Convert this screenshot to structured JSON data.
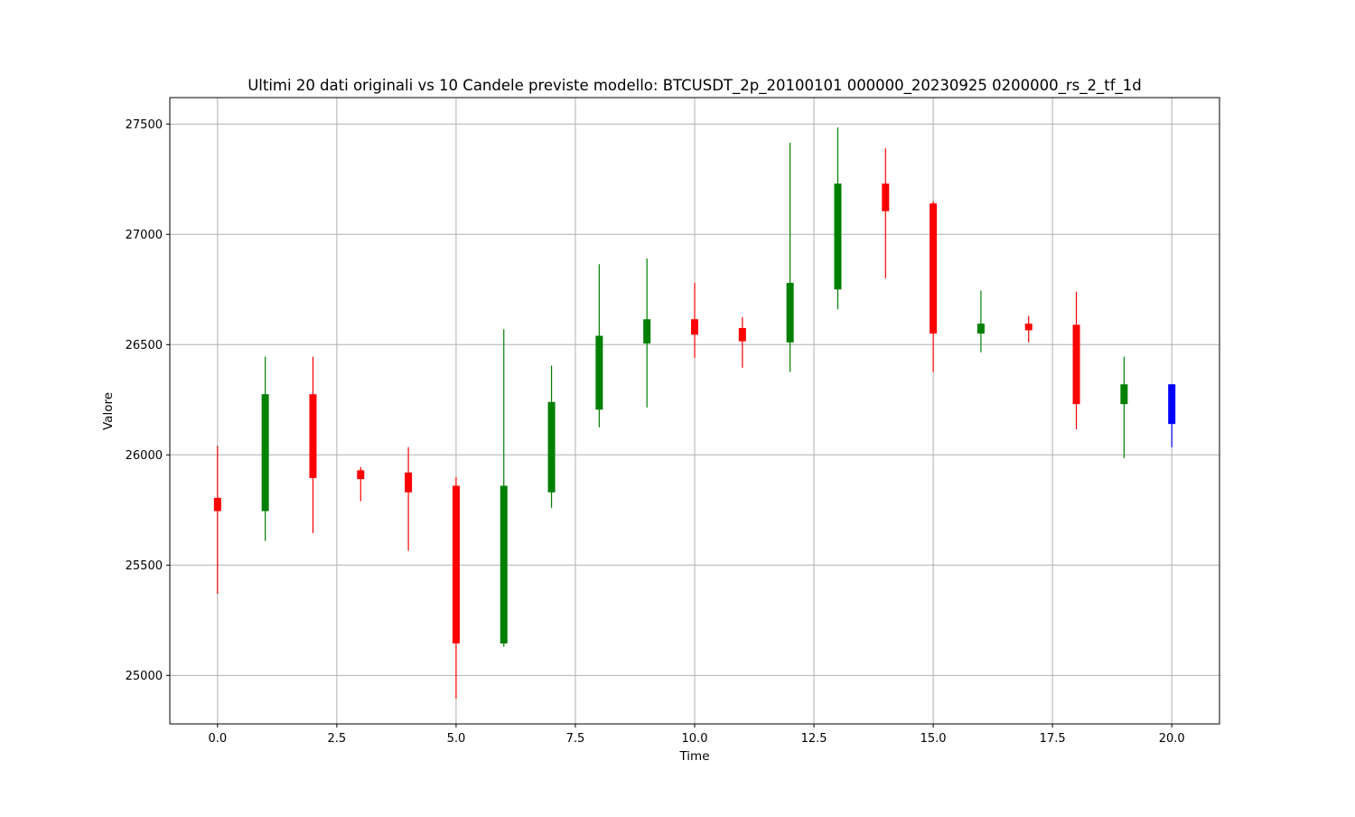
{
  "chart_data": {
    "type": "candlestick",
    "title": "Ultimi 20 dati originali vs 10 Candele previste modello: BTCUSDT_2p_20100101 000000_20230925 0200000_rs_2_tf_1d",
    "xlabel": "Time",
    "ylabel": "Valore",
    "xlim": [
      -1.0,
      21.0
    ],
    "ylim": [
      24780,
      27620
    ],
    "xticks": [
      0.0,
      2.5,
      5.0,
      7.5,
      10.0,
      12.5,
      15.0,
      17.5,
      20.0
    ],
    "xtick_labels": [
      "0.0",
      "2.5",
      "5.0",
      "7.5",
      "10.0",
      "12.5",
      "15.0",
      "17.5",
      "20.0"
    ],
    "yticks": [
      25000,
      25500,
      26000,
      26500,
      27000,
      27500
    ],
    "ytick_labels": [
      "25000",
      "25500",
      "26000",
      "26500",
      "27000",
      "27500"
    ],
    "grid": true,
    "colors": {
      "up": "#008000",
      "down": "#ff0000",
      "forecast": "#0000ff",
      "grid": "#b0b0b0"
    },
    "candles": [
      {
        "x": 0,
        "open": 25805,
        "high": 26040,
        "low": 25370,
        "close": 25745,
        "color": "red"
      },
      {
        "x": 1,
        "open": 25745,
        "high": 26445,
        "low": 25610,
        "close": 26275,
        "color": "green"
      },
      {
        "x": 2,
        "open": 26275,
        "high": 26445,
        "low": 25645,
        "close": 25895,
        "color": "red"
      },
      {
        "x": 3,
        "open": 25930,
        "high": 25945,
        "low": 25790,
        "close": 25890,
        "color": "red"
      },
      {
        "x": 4,
        "open": 25920,
        "high": 26035,
        "low": 25565,
        "close": 25830,
        "color": "red"
      },
      {
        "x": 5,
        "open": 25860,
        "high": 25900,
        "low": 24895,
        "close": 25145,
        "color": "red"
      },
      {
        "x": 6,
        "open": 25145,
        "high": 26570,
        "low": 25130,
        "close": 25860,
        "color": "green"
      },
      {
        "x": 7,
        "open": 25830,
        "high": 26405,
        "low": 25760,
        "close": 26240,
        "color": "green"
      },
      {
        "x": 8,
        "open": 26205,
        "high": 26865,
        "low": 26125,
        "close": 26540,
        "color": "green"
      },
      {
        "x": 9,
        "open": 26505,
        "high": 26890,
        "low": 26215,
        "close": 26615,
        "color": "green"
      },
      {
        "x": 10,
        "open": 26615,
        "high": 26780,
        "low": 26440,
        "close": 26545,
        "color": "red"
      },
      {
        "x": 11,
        "open": 26575,
        "high": 26625,
        "low": 26395,
        "close": 26515,
        "color": "red"
      },
      {
        "x": 12,
        "open": 26510,
        "high": 27415,
        "low": 26375,
        "close": 26780,
        "color": "green"
      },
      {
        "x": 13,
        "open": 26750,
        "high": 27485,
        "low": 26660,
        "close": 27230,
        "color": "green"
      },
      {
        "x": 14,
        "open": 27230,
        "high": 27390,
        "low": 26800,
        "close": 27105,
        "color": "red"
      },
      {
        "x": 15,
        "open": 27140,
        "high": 27150,
        "low": 26375,
        "close": 26550,
        "color": "red"
      },
      {
        "x": 16,
        "open": 26550,
        "high": 26745,
        "low": 26465,
        "close": 26595,
        "color": "green"
      },
      {
        "x": 17,
        "open": 26595,
        "high": 26630,
        "low": 26510,
        "close": 26565,
        "color": "red"
      },
      {
        "x": 18,
        "open": 26590,
        "high": 26740,
        "low": 26115,
        "close": 26230,
        "color": "red"
      },
      {
        "x": 19,
        "open": 26230,
        "high": 26445,
        "low": 25985,
        "close": 26320,
        "color": "green"
      },
      {
        "x": 20,
        "open": 26320,
        "high": 26320,
        "low": 26035,
        "close": 26140,
        "color": "blue"
      }
    ]
  }
}
